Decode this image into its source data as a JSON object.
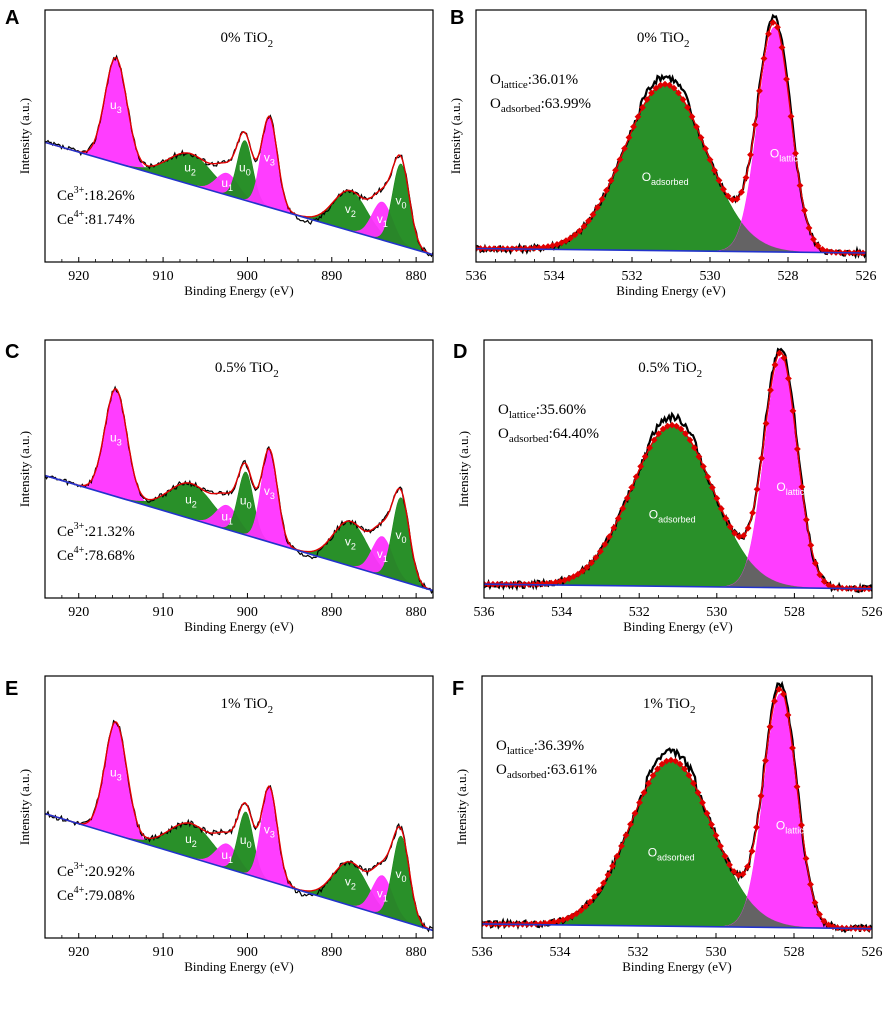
{
  "chart_data": [
    {
      "panel": "A",
      "type": "line",
      "title_main": "0% TiO",
      "title_sub": "2",
      "xlabel": "Binding Energy (eV)",
      "ylabel": "Intensity (a.u.)",
      "xlim": [
        924,
        878
      ],
      "xticks": [
        920,
        910,
        900,
        890,
        880
      ],
      "annotations": [
        {
          "text": "Ce",
          "sup": "3+",
          "tail": ":18.26%"
        },
        {
          "text": "Ce",
          "sup": "4+",
          "tail": ":81.74%"
        }
      ],
      "baseline": [
        [
          924,
          0.62
        ],
        [
          878,
          0.0
        ]
      ],
      "peaks": [
        {
          "label": "u",
          "sub": "3",
          "center": 915.6,
          "height": 0.58,
          "width": 1.3,
          "color": "#ff33ff"
        },
        {
          "label": "u",
          "sub": "2",
          "center": 906.8,
          "height": 0.17,
          "width": 2.6,
          "color": "#1e8a1e"
        },
        {
          "label": "u",
          "sub": "1",
          "center": 902.4,
          "height": 0.12,
          "width": 1.3,
          "color": "#ff33ff"
        },
        {
          "label": "u",
          "sub": "0",
          "center": 900.3,
          "height": 0.33,
          "width": 0.9,
          "color": "#1e8a1e"
        },
        {
          "label": "v",
          "sub": "3",
          "center": 897.4,
          "height": 0.5,
          "width": 0.95,
          "color": "#ff33ff"
        },
        {
          "label": "v",
          "sub": "2",
          "center": 887.8,
          "height": 0.22,
          "width": 2.0,
          "color": "#1e8a1e"
        },
        {
          "label": "v",
          "sub": "1",
          "center": 884.0,
          "height": 0.21,
          "width": 1.2,
          "color": "#ff33ff"
        },
        {
          "label": "v",
          "sub": "0",
          "center": 881.8,
          "height": 0.45,
          "width": 1.0,
          "color": "#1e8a1e"
        }
      ]
    },
    {
      "panel": "B",
      "type": "line",
      "title_main": "0% TiO",
      "title_sub": "2",
      "xlabel": "Binding Energy (eV)",
      "ylabel": "Intensity (a.u.)",
      "xlim": [
        536,
        526
      ],
      "xticks": [
        536,
        534,
        532,
        530,
        528,
        526
      ],
      "annotations": [
        {
          "text": "O",
          "sub": "lattice",
          "tail": ":36.01%"
        },
        {
          "text": "O",
          "sub": "adsorbed",
          "tail": ":63.99%"
        }
      ],
      "baseline": [
        [
          536,
          0.02
        ],
        [
          526,
          0.0
        ]
      ],
      "peaks": [
        {
          "label": "O",
          "sub": "adsorbed",
          "center": 531.15,
          "height": 0.74,
          "width": 1.05,
          "color": "#1e8a1e"
        },
        {
          "label": "O",
          "sub": "lattice",
          "center": 528.35,
          "height": 1.0,
          "width": 0.42,
          "color": "#ff33ff"
        }
      ]
    },
    {
      "panel": "C",
      "type": "line",
      "title_main": "0.5% TiO",
      "title_sub": "2",
      "xlabel": "Binding Energy (eV)",
      "ylabel": "Intensity (a.u.)",
      "xlim": [
        924,
        878
      ],
      "xticks": [
        920,
        910,
        900,
        890,
        880
      ],
      "annotations": [
        {
          "text": "Ce",
          "sup": "3+",
          "tail": ":21.32%"
        },
        {
          "text": "Ce",
          "sup": "4+",
          "tail": ":78.68%"
        }
      ],
      "baseline": [
        [
          924,
          0.62
        ],
        [
          878,
          0.0
        ]
      ],
      "peaks": [
        {
          "label": "u",
          "sub": "3",
          "center": 915.6,
          "height": 0.58,
          "width": 1.3,
          "color": "#ff33ff"
        },
        {
          "label": "u",
          "sub": "2",
          "center": 906.7,
          "height": 0.19,
          "width": 2.6,
          "color": "#1e8a1e"
        },
        {
          "label": "u",
          "sub": "1",
          "center": 902.4,
          "height": 0.13,
          "width": 1.3,
          "color": "#ff33ff"
        },
        {
          "label": "u",
          "sub": "0",
          "center": 900.2,
          "height": 0.34,
          "width": 0.9,
          "color": "#1e8a1e"
        },
        {
          "label": "v",
          "sub": "3",
          "center": 897.4,
          "height": 0.5,
          "width": 0.95,
          "color": "#ff33ff"
        },
        {
          "label": "v",
          "sub": "2",
          "center": 887.8,
          "height": 0.24,
          "width": 2.0,
          "color": "#1e8a1e"
        },
        {
          "label": "v",
          "sub": "1",
          "center": 884.0,
          "height": 0.21,
          "width": 1.2,
          "color": "#ff33ff"
        },
        {
          "label": "v",
          "sub": "0",
          "center": 881.8,
          "height": 0.45,
          "width": 1.0,
          "color": "#1e8a1e"
        }
      ]
    },
    {
      "panel": "D",
      "type": "line",
      "title_main": "0.5% TiO",
      "title_sub": "2",
      "xlabel": "Binding Energy (eV)",
      "ylabel": "Intensity (a.u.)",
      "xlim": [
        536,
        526
      ],
      "xticks": [
        536,
        534,
        532,
        530,
        528,
        526
      ],
      "annotations": [
        {
          "text": "O",
          "sub": "lattice",
          "tail": ":35.60%"
        },
        {
          "text": "O",
          "sub": "adsorbed",
          "tail": ":64.40%"
        }
      ],
      "baseline": [
        [
          536,
          0.02
        ],
        [
          526,
          0.0
        ]
      ],
      "peaks": [
        {
          "label": "O",
          "sub": "adsorbed",
          "center": 531.15,
          "height": 0.7,
          "width": 1.05,
          "color": "#1e8a1e"
        },
        {
          "label": "O",
          "sub": "lattice",
          "center": 528.35,
          "height": 1.0,
          "width": 0.42,
          "color": "#ff33ff"
        }
      ]
    },
    {
      "panel": "E",
      "type": "line",
      "title_main": "1% TiO",
      "title_sub": "2",
      "xlabel": "Binding Energy (eV)",
      "ylabel": "Intensity (a.u.)",
      "xlim": [
        924,
        878
      ],
      "xticks": [
        920,
        910,
        900,
        890,
        880
      ],
      "annotations": [
        {
          "text": "Ce",
          "sup": "3+",
          "tail": ":20.92%"
        },
        {
          "text": "Ce",
          "sup": "4+",
          "tail": ":79.08%"
        }
      ],
      "baseline": [
        [
          924,
          0.62
        ],
        [
          878,
          0.0
        ]
      ],
      "peaks": [
        {
          "label": "u",
          "sub": "3",
          "center": 915.6,
          "height": 0.6,
          "width": 1.3,
          "color": "#ff33ff"
        },
        {
          "label": "u",
          "sub": "2",
          "center": 906.7,
          "height": 0.18,
          "width": 2.6,
          "color": "#1e8a1e"
        },
        {
          "label": "u",
          "sub": "1",
          "center": 902.4,
          "height": 0.13,
          "width": 1.3,
          "color": "#ff33ff"
        },
        {
          "label": "u",
          "sub": "0",
          "center": 900.2,
          "height": 0.33,
          "width": 0.9,
          "color": "#1e8a1e"
        },
        {
          "label": "v",
          "sub": "3",
          "center": 897.4,
          "height": 0.5,
          "width": 0.95,
          "color": "#ff33ff"
        },
        {
          "label": "v",
          "sub": "2",
          "center": 887.8,
          "height": 0.23,
          "width": 2.0,
          "color": "#1e8a1e"
        },
        {
          "label": "v",
          "sub": "1",
          "center": 884.0,
          "height": 0.21,
          "width": 1.2,
          "color": "#ff33ff"
        },
        {
          "label": "v",
          "sub": "0",
          "center": 881.8,
          "height": 0.45,
          "width": 1.0,
          "color": "#1e8a1e"
        }
      ]
    },
    {
      "panel": "F",
      "type": "line",
      "title_main": "1% TiO",
      "title_sub": "2",
      "xlabel": "Binding Energy (eV)",
      "ylabel": "Intensity (a.u.)",
      "xlim": [
        536,
        526
      ],
      "xticks": [
        536,
        534,
        532,
        530,
        528,
        526
      ],
      "annotations": [
        {
          "text": "O",
          "sub": "lattice",
          "tail": ":36.39%"
        },
        {
          "text": "O",
          "sub": "adsorbed",
          "tail": ":63.61%"
        }
      ],
      "baseline": [
        [
          536,
          0.02
        ],
        [
          526,
          0.0
        ]
      ],
      "peaks": [
        {
          "label": "O",
          "sub": "adsorbed",
          "center": 531.15,
          "height": 0.71,
          "width": 1.05,
          "color": "#1e8a1e"
        },
        {
          "label": "O",
          "sub": "lattice",
          "center": 528.35,
          "height": 1.0,
          "width": 0.42,
          "color": "#ff33ff"
        }
      ]
    }
  ],
  "colors": {
    "raw_data": "#000000",
    "fit_envelope": "#e00000",
    "fit_markers": "#e00000",
    "baseline": "#2233cc",
    "green_peak": "#1e8a1e",
    "magenta_peak": "#ff33ff",
    "overlap_shadow": "#4a6b4a"
  }
}
